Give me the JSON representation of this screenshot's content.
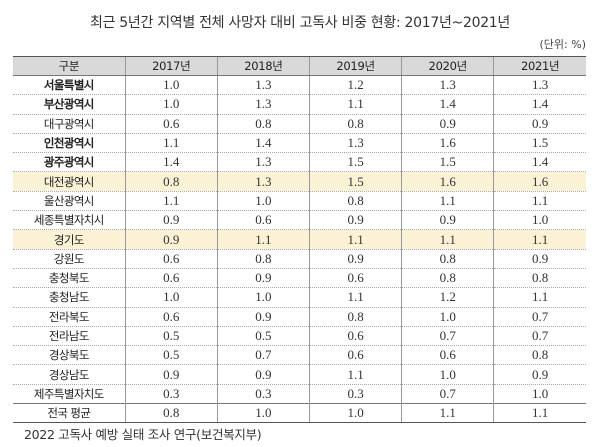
{
  "title": "최근 5년간 지역별 전체 사망자 대비 고독사 비중 현황: 2017년~2021년",
  "unit": "(단위: %)",
  "table": {
    "headers": [
      "구분",
      "2017년",
      "2018년",
      "2019년",
      "2020년",
      "2021년"
    ],
    "rows": [
      {
        "region": "서울특별시",
        "values": [
          "1.0",
          "1.3",
          "1.2",
          "1.3",
          "1.3"
        ],
        "bold": true,
        "highlight": false
      },
      {
        "region": "부산광역시",
        "values": [
          "1.0",
          "1.3",
          "1.1",
          "1.4",
          "1.4"
        ],
        "bold": true,
        "highlight": false
      },
      {
        "region": "대구광역시",
        "values": [
          "0.6",
          "0.8",
          "0.8",
          "0.9",
          "0.9"
        ],
        "bold": false,
        "highlight": false
      },
      {
        "region": "인천광역시",
        "values": [
          "1.1",
          "1.4",
          "1.3",
          "1.6",
          "1.5"
        ],
        "bold": true,
        "highlight": false
      },
      {
        "region": "광주광역시",
        "values": [
          "1.4",
          "1.3",
          "1.5",
          "1.5",
          "1.4"
        ],
        "bold": true,
        "highlight": false
      },
      {
        "region": "대전광역시",
        "values": [
          "0.8",
          "1.3",
          "1.5",
          "1.6",
          "1.6"
        ],
        "bold": false,
        "highlight": true
      },
      {
        "region": "울산광역시",
        "values": [
          "1.1",
          "1.0",
          "0.8",
          "1.1",
          "1.1"
        ],
        "bold": false,
        "highlight": false
      },
      {
        "region": "세종특별자치시",
        "values": [
          "0.9",
          "0.6",
          "0.9",
          "0.9",
          "1.0"
        ],
        "bold": false,
        "highlight": false
      },
      {
        "region": "경기도",
        "values": [
          "0.9",
          "1.1",
          "1.1",
          "1.1",
          "1.1"
        ],
        "bold": false,
        "highlight": true
      },
      {
        "region": "강원도",
        "values": [
          "0.6",
          "0.8",
          "0.9",
          "0.8",
          "0.9"
        ],
        "bold": false,
        "highlight": false
      },
      {
        "region": "충청북도",
        "values": [
          "0.6",
          "0.9",
          "0.6",
          "0.8",
          "0.8"
        ],
        "bold": false,
        "highlight": false
      },
      {
        "region": "충청남도",
        "values": [
          "1.0",
          "1.0",
          "1.1",
          "1.2",
          "1.1"
        ],
        "bold": false,
        "highlight": false
      },
      {
        "region": "전라북도",
        "values": [
          "0.6",
          "0.9",
          "0.8",
          "1.0",
          "0.7"
        ],
        "bold": false,
        "highlight": false
      },
      {
        "region": "전라남도",
        "values": [
          "0.5",
          "0.5",
          "0.6",
          "0.7",
          "0.7"
        ],
        "bold": false,
        "highlight": false
      },
      {
        "region": "경상북도",
        "values": [
          "0.5",
          "0.7",
          "0.6",
          "0.6",
          "0.8"
        ],
        "bold": false,
        "highlight": false
      },
      {
        "region": "경상남도",
        "values": [
          "0.9",
          "0.9",
          "1.1",
          "1.0",
          "0.9"
        ],
        "bold": false,
        "highlight": false
      },
      {
        "region": "제주특별자치도",
        "values": [
          "0.3",
          "0.3",
          "0.3",
          "0.7",
          "1.0"
        ],
        "bold": false,
        "highlight": false
      }
    ],
    "total": {
      "region": "전국 평균",
      "values": [
        "0.8",
        "1.0",
        "1.0",
        "1.1",
        "1.1"
      ]
    }
  },
  "colors": {
    "header_bg": "#d9d9d9",
    "highlight_bg": "#fbf2d6"
  },
  "source": "2022 고독사 예방 실태 조사 연구(보건복지부)"
}
